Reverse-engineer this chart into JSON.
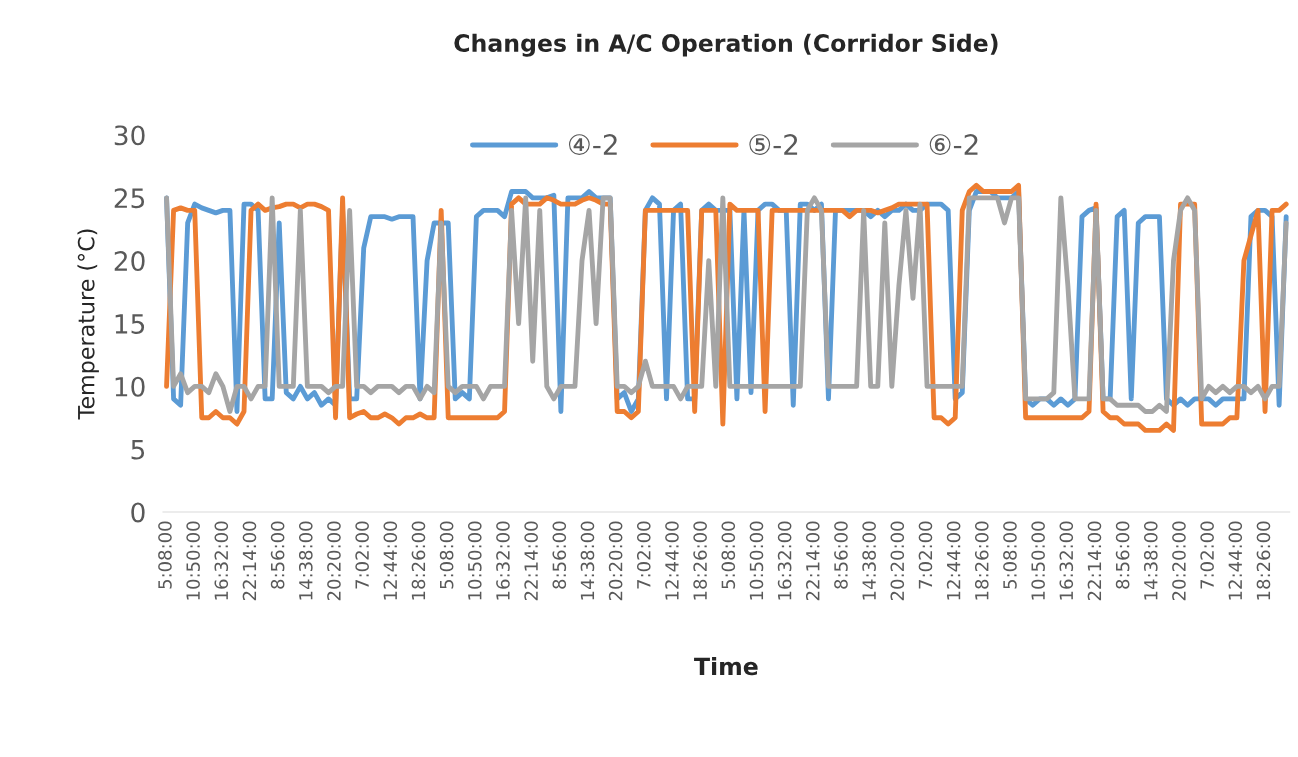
{
  "chart_data": {
    "type": "line",
    "title": "Changes in A/C Operation (Corridor Side)",
    "xlabel": "Time",
    "ylabel": "Temperature (°C)",
    "categories": [
      "5:08:00",
      null,
      null,
      null,
      "10:50:00",
      null,
      null,
      null,
      "16:32:00",
      null,
      null,
      null,
      "22:14:00",
      null,
      null,
      null,
      "8:56:00",
      null,
      null,
      null,
      "14:38:00",
      null,
      null,
      null,
      "20:20:00",
      null,
      null,
      null,
      "7:02:00",
      null,
      null,
      null,
      "12:44:00",
      null,
      null,
      null,
      "18:26:00",
      null,
      null,
      null,
      "5:08:00",
      null,
      null,
      null,
      "10:50:00",
      null,
      null,
      null,
      "16:32:00",
      null,
      null,
      null,
      "22:14:00",
      null,
      null,
      null,
      "8:56:00",
      null,
      null,
      null,
      "14:38:00",
      null,
      null,
      null,
      "20:20:00",
      null,
      null,
      null,
      "7:02:00",
      null,
      null,
      null,
      "12:44:00",
      null,
      null,
      null,
      "18:26:00",
      null,
      null,
      null,
      "5:08:00",
      null,
      null,
      null,
      "10:50:00",
      null,
      null,
      null,
      "16:32:00",
      null,
      null,
      null,
      "22:14:00",
      null,
      null,
      null,
      "8:56:00",
      null,
      null,
      null,
      "14:38:00",
      null,
      null,
      null,
      "20:20:00",
      null,
      null,
      null,
      "7:02:00",
      null,
      null,
      null,
      "12:44:00",
      null,
      null,
      null,
      "18:26:00",
      null,
      null,
      null,
      "5:08:00",
      null,
      null,
      null,
      "10:50:00",
      null,
      null,
      null,
      "16:32:00",
      null,
      null,
      null,
      "22:14:00",
      null,
      null,
      null,
      "8:56:00",
      null,
      null,
      null,
      "14:38:00",
      null,
      null,
      null,
      "20:20:00",
      null,
      null,
      null,
      "7:02:00",
      null,
      null,
      null,
      "12:44:00",
      null,
      null,
      null,
      "18:26:00",
      null,
      null,
      null
    ],
    "series": [
      {
        "name": "④-2",
        "color": "#5b9bd5",
        "values": [
          25,
          9,
          8.5,
          23,
          24.5,
          24.2,
          24,
          23.8,
          24,
          24,
          8,
          24.5,
          24.5,
          24,
          9,
          9,
          23,
          9.5,
          9,
          10,
          9,
          9.5,
          8.5,
          9,
          8.5,
          24,
          9,
          9,
          21,
          23.5,
          23.5,
          23.5,
          23.3,
          23.5,
          23.5,
          23.5,
          9,
          20,
          23,
          23,
          23,
          9,
          9.5,
          9,
          23.5,
          24,
          24,
          24,
          23.5,
          25.5,
          25.5,
          25.5,
          25,
          25,
          25,
          25.2,
          8,
          25,
          25,
          25,
          25.5,
          25,
          25,
          25,
          9,
          9.5,
          8,
          9,
          24,
          25,
          24.5,
          9,
          24,
          24.5,
          9,
          9,
          24,
          24.5,
          24,
          null,
          24,
          9,
          24,
          9.5,
          24,
          24.5,
          24.5,
          24,
          24,
          8.5,
          24.5,
          24.5,
          24,
          24.5,
          9,
          24,
          24,
          24,
          24,
          24,
          23.5,
          24,
          23.5,
          24,
          24,
          24.5,
          24,
          24,
          24.5,
          24.5,
          24.5,
          24,
          9,
          9.5,
          24,
          25.5,
          25.5,
          25.5,
          25,
          25,
          25,
          25.5,
          9,
          8.5,
          9,
          9,
          8.5,
          9,
          8.5,
          9,
          23.5,
          24,
          24.2,
          9,
          9,
          23.5,
          24,
          9,
          23,
          23.5,
          23.5,
          23.5,
          9,
          8.5,
          9,
          8.5,
          9,
          9,
          9,
          8.5,
          9,
          9,
          9,
          9,
          23.5,
          24,
          24,
          23.5,
          8.5,
          23.5
        ]
      },
      {
        "name": "⑤-2",
        "color": "#ed7d31",
        "values": [
          10,
          24,
          24.2,
          24,
          24,
          7.5,
          7.5,
          8,
          7.5,
          7.5,
          7,
          8,
          24,
          24.5,
          24,
          24.2,
          24.3,
          24.5,
          24.5,
          24.2,
          24.5,
          24.5,
          24.3,
          24,
          7.5,
          25,
          7.5,
          7.8,
          8,
          7.5,
          7.5,
          7.8,
          7.5,
          7,
          7.5,
          7.5,
          7.8,
          7.5,
          7.5,
          24,
          7.5,
          7.5,
          7.5,
          7.5,
          7.5,
          7.5,
          7.5,
          7.5,
          8,
          24.5,
          25,
          24.5,
          24.5,
          24.5,
          25,
          24.8,
          24.5,
          24.5,
          24.5,
          24.8,
          25,
          24.8,
          24.5,
          24.5,
          8,
          8,
          7.5,
          8,
          24,
          24,
          24,
          24,
          24,
          24,
          24,
          8,
          24,
          24,
          24,
          7,
          24.5,
          24,
          24,
          24,
          24,
          8,
          24,
          24,
          24,
          24,
          24,
          24,
          24,
          24,
          24,
          24,
          24,
          23.5,
          24,
          24,
          24,
          23.8,
          24,
          24.2,
          24.5,
          24.5,
          24.5,
          24.5,
          24.5,
          7.5,
          7.5,
          7,
          7.5,
          24,
          25.5,
          26,
          25.5,
          25.5,
          25.5,
          25.5,
          25.5,
          26,
          7.5,
          7.5,
          7.5,
          7.5,
          7.5,
          7.5,
          7.5,
          7.5,
          7.5,
          8,
          24.5,
          8,
          7.5,
          7.5,
          7,
          7,
          7,
          6.5,
          6.5,
          6.5,
          7,
          6.5,
          24.5,
          24.5,
          24.5,
          7,
          7,
          7,
          7,
          7.5,
          7.5,
          20,
          22,
          24,
          8,
          24,
          24,
          24.5
        ]
      },
      {
        "name": "⑥-2",
        "color": "#a5a5a5",
        "values": [
          25,
          10,
          11,
          9.5,
          10,
          10,
          9.5,
          11,
          10,
          8,
          10,
          10,
          9,
          10,
          10,
          25,
          10,
          10,
          10,
          24,
          10,
          10,
          10,
          9.5,
          10,
          10,
          24,
          10,
          10,
          9.5,
          10,
          10,
          10,
          9.5,
          10,
          10,
          9,
          10,
          9.5,
          23,
          10,
          9.5,
          10,
          10,
          10,
          9,
          10,
          10,
          10,
          24,
          15,
          25,
          12,
          24,
          10,
          9,
          10,
          10,
          10,
          20,
          24,
          15,
          25,
          25,
          10,
          10,
          9.5,
          10,
          12,
          10,
          10,
          10,
          10,
          9,
          10,
          10,
          10,
          20,
          10,
          25,
          10,
          10,
          10,
          10,
          10,
          10,
          10,
          10,
          10,
          10,
          10,
          24,
          25,
          24,
          10,
          10,
          10,
          10,
          10,
          24,
          10,
          10,
          23,
          10,
          18,
          24,
          17,
          24.5,
          10,
          10,
          10,
          10,
          10,
          10,
          25,
          25,
          25,
          25,
          25,
          23,
          25,
          25,
          9,
          9,
          9,
          9,
          9.5,
          25,
          18,
          9,
          9,
          9,
          24,
          9,
          9,
          8.5,
          8.5,
          8.5,
          8.5,
          8,
          8,
          8.5,
          8,
          20,
          24,
          25,
          24,
          9,
          10,
          9.5,
          10,
          9.5,
          10,
          10,
          9.5,
          10,
          9,
          10,
          10,
          23
        ]
      }
    ],
    "ylim": [
      0,
      30
    ],
    "yticks": [
      0,
      5,
      10,
      15,
      20,
      25,
      30
    ],
    "grid": false,
    "legend": "top",
    "marker": "none",
    "line_style": "solid"
  }
}
